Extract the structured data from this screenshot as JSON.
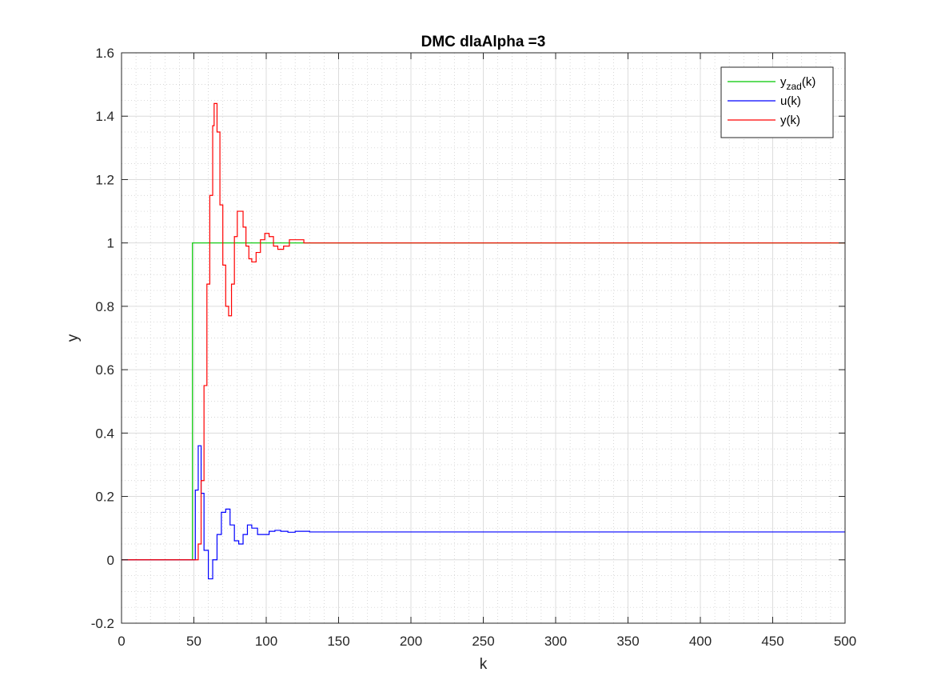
{
  "chart_data": {
    "type": "line",
    "title": "DMC dlaAlpha =3",
    "xlabel": "k",
    "ylabel": "y",
    "xlim": [
      0,
      500
    ],
    "ylim": [
      -0.2,
      1.6
    ],
    "xticks": [
      0,
      50,
      100,
      150,
      200,
      250,
      300,
      350,
      400,
      450,
      500
    ],
    "yticks": [
      -0.2,
      0,
      0.2,
      0.4,
      0.6,
      0.8,
      1,
      1.2,
      1.4,
      1.6
    ],
    "xtick_labels": [
      "0",
      "50",
      "100",
      "150",
      "200",
      "250",
      "300",
      "350",
      "400",
      "450",
      "500"
    ],
    "ytick_labels": [
      "-0.2",
      "0",
      "0.2",
      "0.4",
      "0.6",
      "0.8",
      "1",
      "1.2",
      "1.4",
      "1.6"
    ],
    "grid": "on (major and minor)",
    "legend_position": "top-right",
    "series": [
      {
        "name": "y_zad(k)",
        "legend_main": "y",
        "legend_sub": "zad",
        "legend_suffix": "(k)",
        "color": "#00c800",
        "style": "stairs",
        "points": [
          [
            0,
            0
          ],
          [
            49,
            0
          ],
          [
            49,
            1
          ],
          [
            500,
            1
          ]
        ]
      },
      {
        "name": "u(k)",
        "legend_main": "u(k)",
        "legend_sub": "",
        "legend_suffix": "",
        "color": "#0000ff",
        "style": "stairs",
        "points": [
          [
            0,
            0
          ],
          [
            49,
            0
          ],
          [
            51,
            0.22
          ],
          [
            53,
            0.36
          ],
          [
            55,
            0.21
          ],
          [
            57,
            0.03
          ],
          [
            60,
            -0.06
          ],
          [
            63,
            0.0
          ],
          [
            66,
            0.08
          ],
          [
            69,
            0.15
          ],
          [
            72,
            0.16
          ],
          [
            75,
            0.11
          ],
          [
            78,
            0.06
          ],
          [
            81,
            0.05
          ],
          [
            84,
            0.08
          ],
          [
            87,
            0.11
          ],
          [
            90,
            0.1
          ],
          [
            94,
            0.08
          ],
          [
            98,
            0.08
          ],
          [
            102,
            0.09
          ],
          [
            106,
            0.093
          ],
          [
            110,
            0.09
          ],
          [
            115,
            0.087
          ],
          [
            120,
            0.09
          ],
          [
            130,
            0.088
          ],
          [
            150,
            0.088
          ],
          [
            500,
            0.088
          ]
        ]
      },
      {
        "name": "y(k)",
        "legend_main": "y(k)",
        "legend_sub": "",
        "legend_suffix": "",
        "color": "#ff0000",
        "style": "stairs",
        "points": [
          [
            0,
            0
          ],
          [
            51,
            0
          ],
          [
            53,
            0.05
          ],
          [
            55,
            0.25
          ],
          [
            57,
            0.55
          ],
          [
            59,
            0.87
          ],
          [
            61,
            1.15
          ],
          [
            63,
            1.37
          ],
          [
            64,
            1.44
          ],
          [
            66,
            1.35
          ],
          [
            68,
            1.12
          ],
          [
            70,
            0.93
          ],
          [
            72,
            0.8
          ],
          [
            74,
            0.77
          ],
          [
            76,
            0.87
          ],
          [
            78,
            1.02
          ],
          [
            80,
            1.1
          ],
          [
            82,
            1.1
          ],
          [
            84,
            1.05
          ],
          [
            86,
            0.99
          ],
          [
            88,
            0.95
          ],
          [
            90,
            0.94
          ],
          [
            93,
            0.97
          ],
          [
            96,
            1.01
          ],
          [
            99,
            1.03
          ],
          [
            102,
            1.02
          ],
          [
            105,
            0.99
          ],
          [
            108,
            0.98
          ],
          [
            112,
            0.99
          ],
          [
            116,
            1.01
          ],
          [
            120,
            1.01
          ],
          [
            126,
            1.0
          ],
          [
            132,
            1.0
          ],
          [
            140,
            1.0
          ],
          [
            500,
            1.0
          ]
        ]
      }
    ]
  }
}
